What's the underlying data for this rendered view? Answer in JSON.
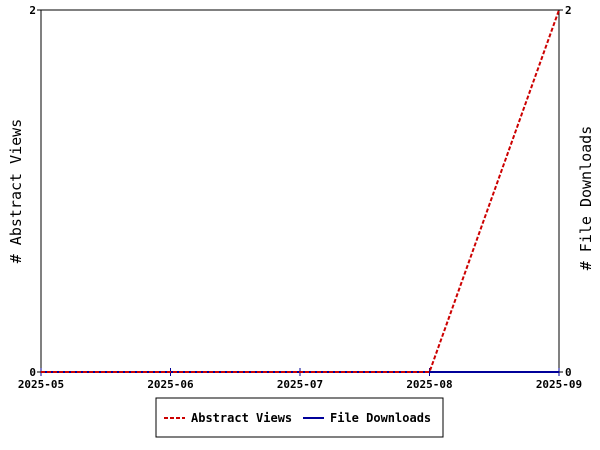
{
  "chart_data": {
    "type": "line",
    "x": [
      "2025-05",
      "2025-06",
      "2025-07",
      "2025-08",
      "2025-09"
    ],
    "series": [
      {
        "name": "Abstract Views",
        "axis": "left",
        "color": "#cc0000",
        "dash": "dashed",
        "values": [
          0,
          0,
          0,
          0,
          2
        ]
      },
      {
        "name": "File Downloads",
        "axis": "right",
        "color": "#000099",
        "dash": "solid",
        "values": [
          0,
          0,
          0,
          0,
          0
        ]
      }
    ],
    "ylabel_left": "# Abstract Views",
    "ylabel_right": "# File Downloads",
    "ylim_left": [
      0,
      2
    ],
    "ylim_right": [
      0,
      2
    ],
    "yticks_left": [
      "0",
      "2"
    ],
    "yticks_right": [
      "0",
      "2"
    ],
    "grid": false,
    "legend_position": "bottom-center"
  }
}
